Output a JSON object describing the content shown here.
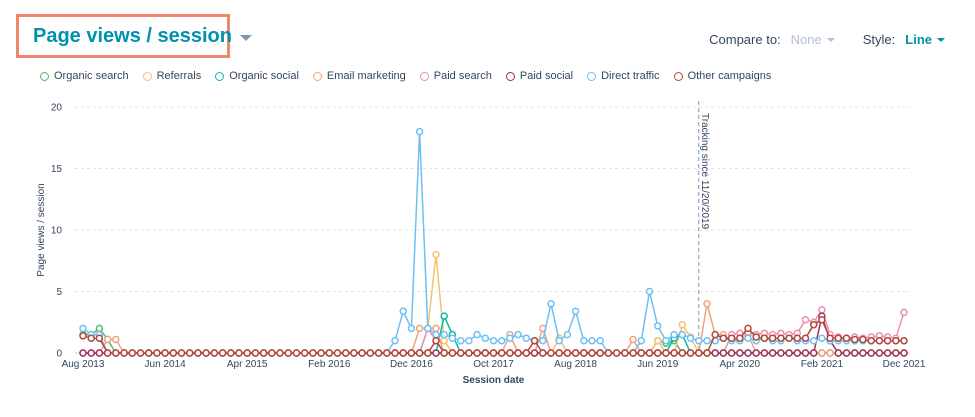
{
  "header": {
    "title": "Page views / session"
  },
  "controls": {
    "compare_label": "Compare to:",
    "compare_value": "None",
    "style_label": "Style:",
    "style_value": "Line"
  },
  "colors": {
    "organic_search": "#4dbe6b",
    "referrals": "#f5c26b",
    "organic_social": "#00bda5",
    "email_marketing": "#f2a27d",
    "paid_search": "#ea90b1",
    "paid_social": "#a2315a",
    "direct_traffic": "#6dc0f5",
    "other_campaigns": "#b5463a",
    "tracking_line": "#7c98b6"
  },
  "chart_data": {
    "type": "line",
    "title": "Page views / session",
    "xlabel": "Session date",
    "ylabel": "Page views / session",
    "ylim": [
      0,
      20
    ],
    "yticks": [
      0,
      5,
      10,
      15,
      20
    ],
    "grid": "horizontal dashed",
    "legend_position": "top",
    "x_start": "Aug 2013",
    "x_end": "Dec 2021",
    "xticks": [
      "Aug 2013",
      "Jun 2014",
      "Apr 2015",
      "Feb 2016",
      "Dec 2016",
      "Oct 2017",
      "Aug 2018",
      "Jun 2019",
      "Apr 2020",
      "Feb 2021",
      "Dec 2021"
    ],
    "annotation": {
      "text": "Tracking since 11/20/2019",
      "x": "Nov 2019"
    },
    "series": [
      {
        "name": "Organic search",
        "color": "#4dbe6b",
        "baseline": 0,
        "start": "Aug 2013",
        "end": "Dec 2021",
        "points": [
          [
            "Aug 2013",
            1.5
          ],
          [
            "Sep 2013",
            1.5
          ],
          [
            "Oct 2013",
            2.0
          ],
          [
            "Nov 2013",
            1.1
          ],
          [
            "Dec 2013",
            0
          ],
          [
            "Jun 2019",
            1.0
          ],
          [
            "Jul 2019",
            0.8
          ],
          [
            "Aug 2019",
            1.0
          ]
        ]
      },
      {
        "name": "Referrals",
        "color": "#f5c26b",
        "baseline": 0,
        "start": "Aug 2013",
        "end": "Dec 2021",
        "points": [
          [
            "Feb 2017",
            2.0
          ],
          [
            "Mar 2017",
            8.0
          ],
          [
            "Apr 2017",
            1.0
          ],
          [
            "Jun 2018",
            1.2
          ],
          [
            "Jun 2019",
            1.0
          ],
          [
            "Sep 2019",
            2.3
          ],
          [
            "Oct 2019",
            1.3
          ]
        ]
      },
      {
        "name": "Organic social",
        "color": "#00bda5",
        "baseline": 0,
        "start": "Aug 2013",
        "end": "Dec 2021",
        "points": [
          [
            "Apr 2017",
            3.0
          ],
          [
            "May 2017",
            1.5
          ],
          [
            "Aug 2019",
            1.2
          ],
          [
            "Sep 2019",
            1.5
          ]
        ]
      },
      {
        "name": "Email marketing",
        "color": "#f2a27d",
        "baseline": 0,
        "start": "Aug 2013",
        "end": "Dec 2021",
        "points": [
          [
            "Nov 2013",
            1.1
          ],
          [
            "Dec 2013",
            1.1
          ],
          [
            "Jan 2017",
            2.0
          ],
          [
            "Feb 2017",
            2.0
          ],
          [
            "Mar 2017",
            2.0
          ],
          [
            "Dec 2017",
            1.5
          ],
          [
            "Apr 2018",
            2.0
          ],
          [
            "Mar 2019",
            1.1
          ],
          [
            "Dec 2019",
            4.0
          ],
          [
            "Jan 2020",
            1.5
          ],
          [
            "Feb 2020",
            1.5
          ],
          [
            "Mar 2020",
            1.0
          ],
          [
            "Apr 2020",
            1.2
          ],
          [
            "May 2020",
            1.5
          ]
        ]
      },
      {
        "name": "Paid search",
        "color": "#ea90b1",
        "baseline": 0,
        "start": "Aug 2013",
        "end": "Dec 2021",
        "points": [
          [
            "Feb 2017",
            2.0
          ],
          [
            "Mar 2017",
            1.0
          ],
          [
            "Mar 2020",
            1.5
          ],
          [
            "Apr 2020",
            1.6
          ],
          [
            "May 2020",
            1.7
          ],
          [
            "Jun 2020",
            1.5
          ],
          [
            "Jul 2020",
            1.6
          ],
          [
            "Aug 2020",
            1.5
          ],
          [
            "Sep 2020",
            1.6
          ],
          [
            "Oct 2020",
            1.5
          ],
          [
            "Nov 2020",
            1.6
          ],
          [
            "Dec 2020",
            2.7
          ],
          [
            "Jan 2021",
            2.5
          ],
          [
            "Feb 2021",
            3.5
          ],
          [
            "Mar 2021",
            1.5
          ],
          [
            "Apr 2021",
            1.3
          ],
          [
            "May 2021",
            1.2
          ],
          [
            "Jun 2021",
            1.3
          ],
          [
            "Jul 2021",
            1.2
          ],
          [
            "Aug 2021",
            1.3
          ],
          [
            "Sep 2021",
            1.4
          ],
          [
            "Oct 2021",
            1.3
          ],
          [
            "Nov 2021",
            1.2
          ],
          [
            "Dec 2021",
            3.3
          ]
        ]
      },
      {
        "name": "Paid social",
        "color": "#a2315a",
        "baseline": 0,
        "start": "Aug 2013",
        "end": "Dec 2021",
        "points": [
          [
            "Feb 2021",
            3.0
          ],
          [
            "Mar 2021",
            1.0
          ]
        ]
      },
      {
        "name": "Direct traffic",
        "color": "#6dc0f5",
        "baseline": 0,
        "start": "Aug 2013",
        "end": "Dec 2021",
        "points": [
          [
            "Aug 2013",
            2.0
          ],
          [
            "Sep 2013",
            1.5
          ],
          [
            "Oct 2013",
            1.5
          ],
          [
            "Nov 2013",
            0
          ],
          [
            "Oct 2016",
            1.0
          ],
          [
            "Nov 2016",
            3.4
          ],
          [
            "Dec 2016",
            2.0
          ],
          [
            "Jan 2017",
            18.0
          ],
          [
            "Feb 2017",
            2.0
          ],
          [
            "Mar 2017",
            1.5
          ],
          [
            "Apr 2017",
            1.5
          ],
          [
            "May 2017",
            1.2
          ],
          [
            "Jun 2017",
            1.0
          ],
          [
            "Jul 2017",
            1.0
          ],
          [
            "Aug 2017",
            1.5
          ],
          [
            "Sep 2017",
            1.2
          ],
          [
            "Oct 2017",
            1.0
          ],
          [
            "Nov 2017",
            1.0
          ],
          [
            "Dec 2017",
            1.2
          ],
          [
            "Jan 2018",
            1.5
          ],
          [
            "Feb 2018",
            1.2
          ],
          [
            "Mar 2018",
            1.0
          ],
          [
            "Apr 2018",
            1.0
          ],
          [
            "May 2018",
            4.0
          ],
          [
            "Jun 2018",
            1.0
          ],
          [
            "Jul 2018",
            1.5
          ],
          [
            "Aug 2018",
            3.4
          ],
          [
            "Sep 2018",
            1.0
          ],
          [
            "Oct 2018",
            1.0
          ],
          [
            "Nov 2018",
            1.0
          ],
          [
            "Dec 2018",
            0
          ],
          [
            "Apr 2019",
            1.0
          ],
          [
            "May 2019",
            5.0
          ],
          [
            "Jun 2019",
            2.2
          ],
          [
            "Jul 2019",
            1.0
          ],
          [
            "Aug 2019",
            1.5
          ],
          [
            "Sep 2019",
            1.5
          ],
          [
            "Oct 2019",
            1.2
          ],
          [
            "Nov 2019",
            1.0
          ],
          [
            "Dec 2019",
            1.0
          ],
          [
            "Jan 2020",
            1.0
          ],
          [
            "Feb 2020",
            1.2
          ],
          [
            "Mar 2020",
            1.0
          ],
          [
            "Apr 2020",
            1.0
          ],
          [
            "May 2020",
            1.2
          ],
          [
            "Jun 2020",
            1.0
          ],
          [
            "Jul 2020",
            1.2
          ],
          [
            "Aug 2020",
            1.0
          ],
          [
            "Sep 2020",
            1.0
          ],
          [
            "Oct 2020",
            1.2
          ],
          [
            "Nov 2020",
            1.0
          ],
          [
            "Dec 2020",
            1.0
          ],
          [
            "Jan 2021",
            1.0
          ],
          [
            "Feb 2021",
            1.2
          ],
          [
            "Mar 2021",
            1.0
          ],
          [
            "Apr 2021",
            1.0
          ],
          [
            "May 2021",
            1.0
          ],
          [
            "Jun 2021",
            1.0
          ],
          [
            "Jul 2021",
            1.0
          ],
          [
            "Aug 2021",
            1.0
          ],
          [
            "Sep 2021",
            1.0
          ],
          [
            "Oct 2021",
            1.0
          ],
          [
            "Nov 2021",
            1.0
          ],
          [
            "Dec 2021",
            1.0
          ]
        ]
      },
      {
        "name": "Other campaigns",
        "color": "#b5463a",
        "baseline": 0,
        "start": "Aug 2013",
        "end": "Dec 2021",
        "points": [
          [
            "Aug 2013",
            1.4
          ],
          [
            "Sep 2013",
            1.2
          ],
          [
            "Oct 2013",
            1.2
          ],
          [
            "Nov 2013",
            0
          ],
          [
            "Mar 2017",
            1.0
          ],
          [
            "Apr 2017",
            0
          ],
          [
            "Oct 2017",
            0
          ],
          [
            "Dec 2017",
            0
          ],
          [
            "Mar 2018",
            1.0
          ],
          [
            "Apr 2018",
            0
          ],
          [
            "Jan 2020",
            1.5
          ],
          [
            "Feb 2020",
            1.2
          ],
          [
            "Mar 2020",
            1.2
          ],
          [
            "Apr 2020",
            1.2
          ],
          [
            "May 2020",
            2.0
          ],
          [
            "Jun 2020",
            1.3
          ],
          [
            "Jul 2020",
            1.2
          ],
          [
            "Aug 2020",
            1.2
          ],
          [
            "Sep 2020",
            1.2
          ],
          [
            "Oct 2020",
            1.2
          ],
          [
            "Nov 2020",
            1.2
          ],
          [
            "Dec 2020",
            1.2
          ],
          [
            "Jan 2021",
            2.3
          ],
          [
            "Feb 2021",
            2.7
          ],
          [
            "Mar 2021",
            1.2
          ],
          [
            "Apr 2021",
            1.2
          ],
          [
            "May 2021",
            1.2
          ],
          [
            "Jun 2021",
            1.1
          ],
          [
            "Jul 2021",
            1.1
          ],
          [
            "Aug 2021",
            1.0
          ],
          [
            "Sep 2021",
            1.0
          ],
          [
            "Oct 2021",
            1.0
          ],
          [
            "Nov 2021",
            1.0
          ],
          [
            "Dec 2021",
            1.0
          ]
        ]
      }
    ]
  }
}
